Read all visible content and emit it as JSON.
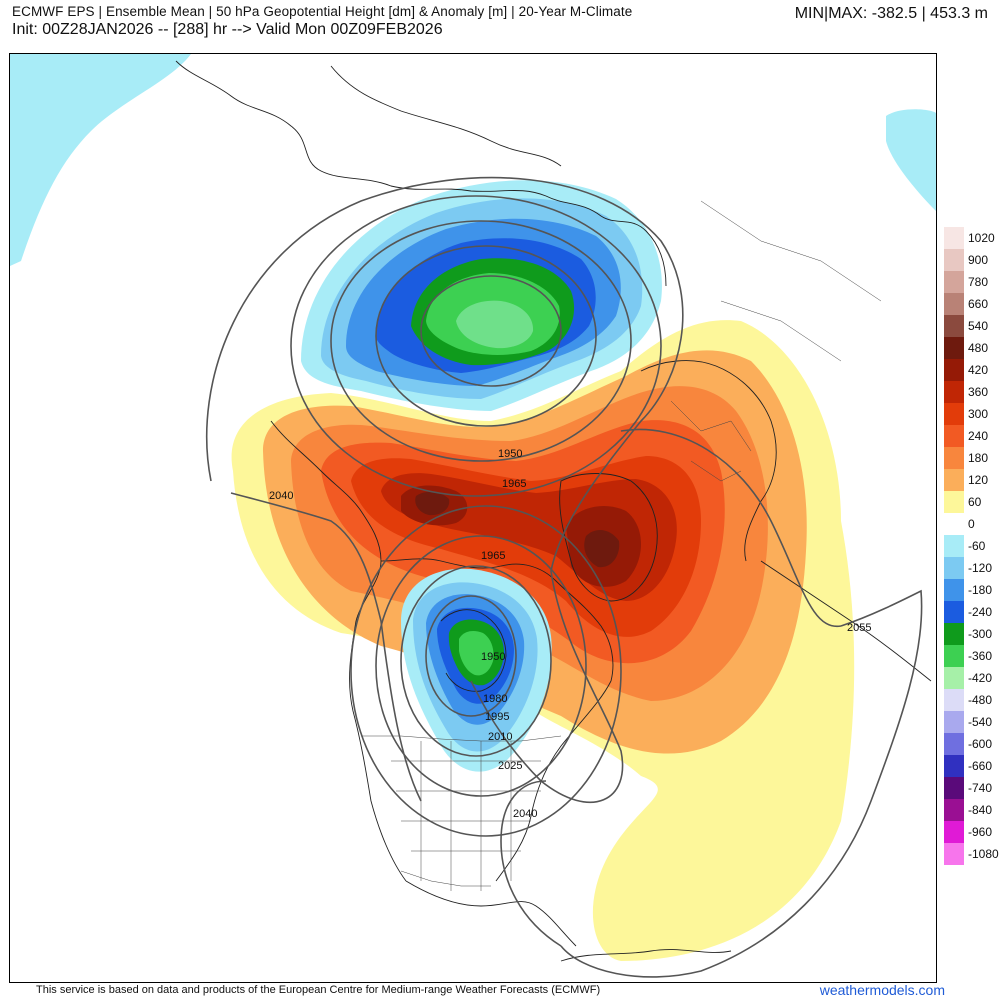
{
  "header": {
    "title": "ECMWF EPS | Ensemble Mean | 50 hPa Geopotential Height [dm] & Anomaly [m] | 20-Year M-Climate",
    "init_line": "Init: 00Z28JAN2026 -- [288] hr --> Valid Mon 00Z09FEB2026",
    "minmax": "MIN|MAX: -382.5 | 453.3 m"
  },
  "colorbar": {
    "entries": [
      {
        "label": "1020",
        "color": "#f7e6e4"
      },
      {
        "label": "900",
        "color": "#e8c8c2"
      },
      {
        "label": "780",
        "color": "#d4a59b"
      },
      {
        "label": "660",
        "color": "#b98276"
      },
      {
        "label": "540",
        "color": "#8b4a3e"
      },
      {
        "label": "480",
        "color": "#6e1a0e"
      },
      {
        "label": "420",
        "color": "#951a06"
      },
      {
        "label": "360",
        "color": "#c02605"
      },
      {
        "label": "300",
        "color": "#e23c0a"
      },
      {
        "label": "240",
        "color": "#f25a23"
      },
      {
        "label": "180",
        "color": "#f8863d"
      },
      {
        "label": "120",
        "color": "#fbae5a"
      },
      {
        "label": "60",
        "color": "#fdf79a"
      },
      {
        "label": "0",
        "color": "#ffffff"
      },
      {
        "label": "-60",
        "color": "#a8ecf7"
      },
      {
        "label": "-120",
        "color": "#7ccaf2"
      },
      {
        "label": "-180",
        "color": "#3f93ea"
      },
      {
        "label": "-240",
        "color": "#1b5ce0"
      },
      {
        "label": "-300",
        "color": "#0f9b1c"
      },
      {
        "label": "-360",
        "color": "#3dd052"
      },
      {
        "label": "-420",
        "color": "#a6f0a8"
      },
      {
        "label": "-480",
        "color": "#dcdcf7"
      },
      {
        "label": "-540",
        "color": "#a9a9ee"
      },
      {
        "label": "-600",
        "color": "#6f6fe0"
      },
      {
        "label": "-660",
        "color": "#3030c0"
      },
      {
        "label": "-740",
        "color": "#5a0a7a"
      },
      {
        "label": "-840",
        "color": "#9a0f93"
      },
      {
        "label": "-960",
        "color": "#e01ad6"
      },
      {
        "label": "-1080",
        "color": "#f775ec"
      }
    ]
  },
  "contours": [
    {
      "label": "2040"
    },
    {
      "label": "1950"
    },
    {
      "label": "1965"
    },
    {
      "label": "1965"
    },
    {
      "label": "1950"
    },
    {
      "label": "1980"
    },
    {
      "label": "1995"
    },
    {
      "label": "2010"
    },
    {
      "label": "2025"
    },
    {
      "label": "2040"
    },
    {
      "label": "2055"
    }
  ],
  "footer": {
    "credit": "This service is based on data and products of the European Centre for Medium-range Weather Forecasts (ECMWF)",
    "brand": "weathermodels.com"
  }
}
